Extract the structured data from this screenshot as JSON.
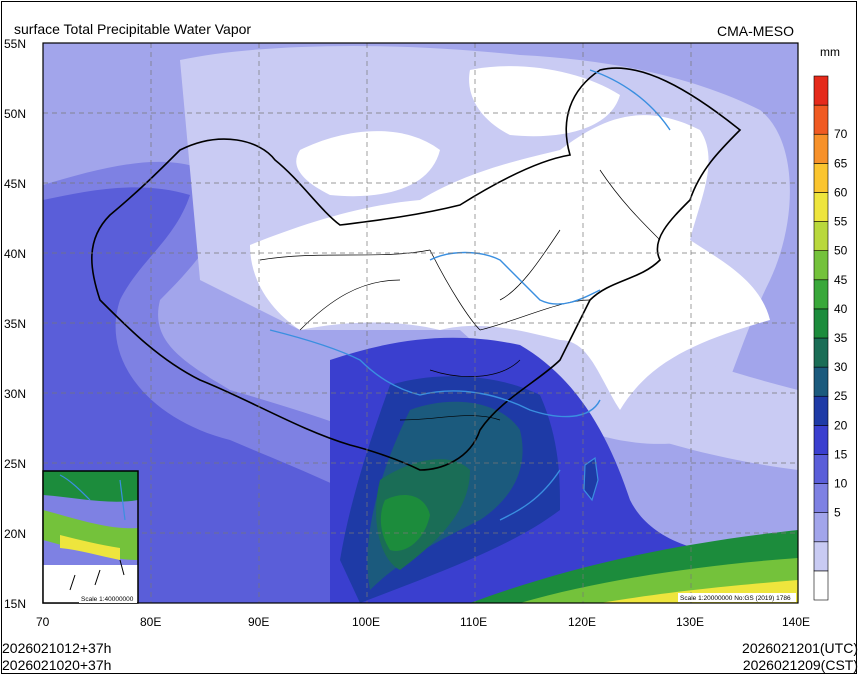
{
  "title": "surface Total Precipitable Water Vapor",
  "source": "CMA-MESO",
  "times": {
    "init_utc": "2026021012+37h",
    "init_cst": "2026021020+37h",
    "valid_utc": "2026021201(UTC)",
    "valid_cst": "2026021209(CST)"
  },
  "axes": {
    "lat_labels": [
      "55N",
      "50N",
      "45N",
      "40N",
      "35N",
      "30N",
      "25N",
      "20N",
      "15N"
    ],
    "lon_labels": [
      "70",
      "80E",
      "90E",
      "100E",
      "110E",
      "120E",
      "130E",
      "140E"
    ],
    "lat_range": [
      15,
      55
    ],
    "lon_range": [
      70,
      140
    ]
  },
  "colorbar": {
    "unit": "mm",
    "levels": [
      "70",
      "65",
      "60",
      "55",
      "50",
      "45",
      "40",
      "35",
      "30",
      "25",
      "20",
      "15",
      "10",
      "5"
    ],
    "colors": [
      "#ffffff",
      "#c9cbf3",
      "#a2a5eb",
      "#7e81e3",
      "#5a5ed9",
      "#3a3fcf",
      "#1e3aa6",
      "#1b5a7d",
      "#1a6d56",
      "#1c8c3c",
      "#39a83a",
      "#74c23b",
      "#b9d83c",
      "#eee53d",
      "#fbc52f",
      "#f7912a",
      "#f05a22",
      "#e52a1b"
    ]
  },
  "scale_main": "Scale 1:20000000 No:GS (2019) 1786",
  "scale_inset": "Scale 1:40000000"
}
